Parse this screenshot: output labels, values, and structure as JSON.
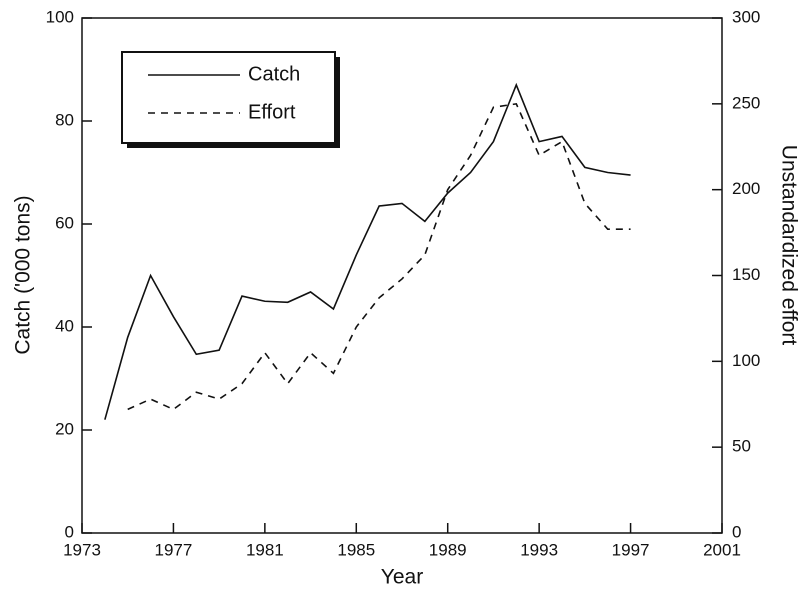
{
  "chart_data": {
    "type": "line",
    "x_label": "Year",
    "y_label": "Catch ('000 tons)",
    "y2_label": "Unstandardized effort",
    "x": [
      1974,
      1975,
      1976,
      1977,
      1978,
      1979,
      1980,
      1981,
      1982,
      1983,
      1984,
      1985,
      1986,
      1987,
      1988,
      1989,
      1990,
      1991,
      1992,
      1993,
      1994,
      1995,
      1996,
      1997
    ],
    "series": [
      {
        "name": "Catch",
        "color": "#111111",
        "dash": "solid",
        "values": [
          22,
          38,
          50,
          42,
          34.7,
          35.5,
          46,
          45,
          44.8,
          46.8,
          43.5,
          54,
          63.5,
          64,
          60.5,
          66,
          70,
          76,
          87,
          76,
          77,
          71,
          70,
          69.5
        ]
      },
      {
        "name": "Effort",
        "color": "#111111",
        "dash": "dashed",
        "axis": "y2",
        "values": [
          null,
          72,
          78,
          72,
          82,
          78,
          87,
          105,
          87,
          105,
          93,
          120,
          137,
          148,
          162,
          200,
          220,
          248,
          250,
          220,
          228,
          192,
          177,
          177
        ]
      }
    ],
    "xlim": [
      1973,
      2001
    ],
    "xticks": [
      1973,
      1977,
      1981,
      1985,
      1989,
      1993,
      1997,
      2001
    ],
    "ylim": [
      0,
      100
    ],
    "yticks": [
      0,
      20,
      40,
      60,
      80,
      100
    ],
    "y2lim": [
      0,
      300
    ],
    "y2ticks": [
      0,
      50,
      100,
      150,
      200,
      250,
      300
    ],
    "legend": "top-left",
    "grid": false
  }
}
